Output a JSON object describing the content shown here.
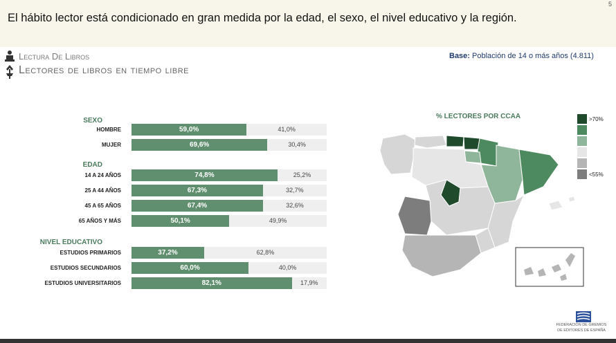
{
  "header": {
    "headline": "El hábito lector está condicionado en gran medida por la edad, el sexo, el nivel educativo y la región.",
    "page_number": "5"
  },
  "section": {
    "title": "Lectura De Libros",
    "subtitle": "Lectores de libros en tiempo libre"
  },
  "base": {
    "label": "Base:",
    "text": "Población de 14 o más años (4.811)"
  },
  "chart_data": {
    "type": "bar",
    "orientation": "horizontal",
    "stacked": true,
    "groups": [
      {
        "title": "SEXO",
        "rows": [
          {
            "label": "HOMBRE",
            "value": 59.0,
            "value_text": "59,0%",
            "rest_text": "41,0%"
          },
          {
            "label": "MUJER",
            "value": 69.6,
            "value_text": "69,6%",
            "rest_text": "30,4%"
          }
        ]
      },
      {
        "title": "EDAD",
        "rows": [
          {
            "label": "14 A 24 AÑOS",
            "value": 74.8,
            "value_text": "74,8%",
            "rest_text": "25,2%"
          },
          {
            "label": "25 A 44 AÑOS",
            "value": 67.3,
            "value_text": "67,3%",
            "rest_text": "32,7%"
          },
          {
            "label": "45 A 65 AÑOS",
            "value": 67.4,
            "value_text": "67,4%",
            "rest_text": "32,6%"
          },
          {
            "label": "65 AÑOS Y MÁS",
            "value": 50.1,
            "value_text": "50,1%",
            "rest_text": "49,9%"
          }
        ]
      },
      {
        "title": "NIVEL EDUCATIVO",
        "rows": [
          {
            "label": "ESTUDIOS PRIMARIOS",
            "value": 37.2,
            "value_text": "37,2%",
            "rest_text": "62,8%"
          },
          {
            "label": "ESTUDIOS SECUNDARIOS",
            "value": 60.0,
            "value_text": "60,0%",
            "rest_text": "40,0%"
          },
          {
            "label": "ESTUDIOS UNIVERSITARIOS",
            "value": 82.1,
            "value_text": "82,1%",
            "rest_text": "17,9%"
          }
        ]
      }
    ],
    "xlim": [
      0,
      100
    ],
    "colors": {
      "filled": "#5f8f6e",
      "rest": "#efefef"
    }
  },
  "map": {
    "title": "% LECTORES POR CCAA",
    "legend": [
      {
        "label": ">70%",
        "color": "#1f4a2c"
      },
      {
        "label": "",
        "color": "#4e8a5f"
      },
      {
        "label": "",
        "color": "#8fb59a"
      },
      {
        "label": "",
        "color": "#e6e6e6"
      },
      {
        "label": "",
        "color": "#b5b5b5"
      },
      {
        "label": "<55%",
        "color": "#7d7d7d"
      }
    ]
  },
  "footer": {
    "org_line1": "FEDERACIÓN DE GREMIOS",
    "org_line2": "DE EDITORES DE ESPAÑA"
  }
}
